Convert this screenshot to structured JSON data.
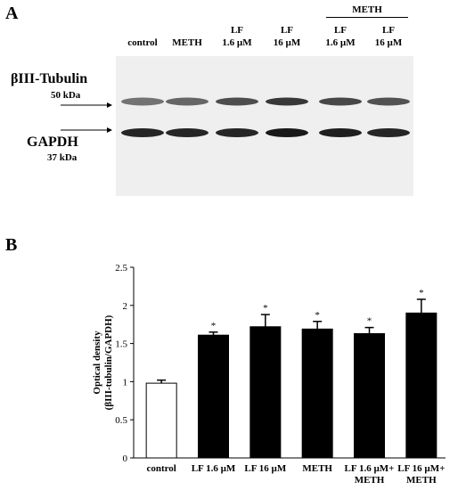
{
  "panel_a": {
    "letter": "A",
    "group_label": "METH",
    "lanes": [
      {
        "line1": "control",
        "line2": ""
      },
      {
        "line1": "METH",
        "line2": ""
      },
      {
        "line1": "LF",
        "line2": "1.6 µM"
      },
      {
        "line1": "LF",
        "line2": "16 µM"
      },
      {
        "line1": "LF",
        "line2": "1.6 µM"
      },
      {
        "line1": "LF",
        "line2": "16 µM"
      }
    ],
    "bands": {
      "top": {
        "name": "βIII-Tubulin",
        "size": "50 kDa",
        "intensity": [
          0.55,
          0.6,
          0.7,
          0.78,
          0.72,
          0.68
        ]
      },
      "bottom": {
        "name": "GAPDH",
        "size": "37 kDa",
        "intensity": [
          0.85,
          0.85,
          0.85,
          0.9,
          0.88,
          0.85
        ]
      }
    }
  },
  "panel_b": {
    "letter": "B"
  },
  "chart_data": {
    "type": "bar",
    "categories": [
      [
        "control"
      ],
      [
        "LF 1.6 µM"
      ],
      [
        "LF 16 µM"
      ],
      [
        "METH"
      ],
      [
        "LF 1.6 µM+",
        "METH"
      ],
      [
        "LF 16 µM+",
        "METH"
      ]
    ],
    "values": [
      0.98,
      1.61,
      1.72,
      1.69,
      1.63,
      1.9
    ],
    "errors": [
      0.04,
      0.04,
      0.16,
      0.1,
      0.08,
      0.18
    ],
    "significance": [
      "",
      "*",
      "*",
      "*",
      "*",
      "*"
    ],
    "bar_colors": [
      "#ffffff",
      "#000000",
      "#000000",
      "#000000",
      "#000000",
      "#000000"
    ],
    "ylabel": [
      "Optical density",
      "(βIII-tubulin/GAPDH)"
    ],
    "ylim": [
      0,
      2.5
    ],
    "yticks": [
      "0",
      "0.5",
      "1",
      "1.5",
      "2",
      "2.5"
    ],
    "grid": false
  }
}
